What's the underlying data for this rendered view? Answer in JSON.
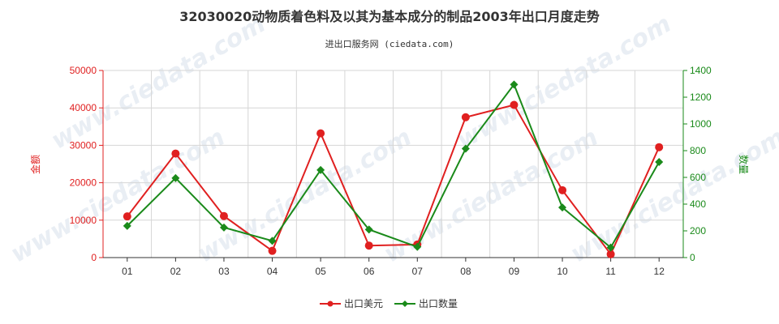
{
  "chart_data": {
    "type": "line",
    "title": "32030020动物质着色料及以其为基本成分的制品2003年出口月度走势",
    "subtitle": "进出口服务网 (ciedata.com)",
    "watermark": "www.ciedata.com",
    "categories": [
      "01",
      "02",
      "03",
      "04",
      "05",
      "06",
      "07",
      "08",
      "09",
      "10",
      "11",
      "12"
    ],
    "y_left": {
      "label": "金额",
      "range": [
        0,
        50000
      ],
      "ticks": [
        "0",
        "10000",
        "20000",
        "30000",
        "40000",
        "50000"
      ],
      "color": "#e02020"
    },
    "y_right": {
      "label": "数量",
      "range": [
        0,
        1400
      ],
      "ticks": [
        "0",
        "200",
        "400",
        "600",
        "800",
        "1000",
        "1200",
        "1400"
      ],
      "color": "#1a8a1a"
    },
    "series": [
      {
        "name": "出口美元",
        "axis": "left",
        "color": "#e02020",
        "values": [
          11000,
          27800,
          11100,
          1800,
          33200,
          3200,
          3500,
          37500,
          40800,
          18000,
          900,
          29500
        ]
      },
      {
        "name": "出口数量",
        "axis": "right",
        "color": "#1a8a1a",
        "values": [
          237,
          595,
          225,
          125,
          655,
          210,
          80,
          815,
          1295,
          375,
          75,
          715
        ]
      }
    ],
    "grid": true,
    "legend_position": "bottom-center"
  }
}
